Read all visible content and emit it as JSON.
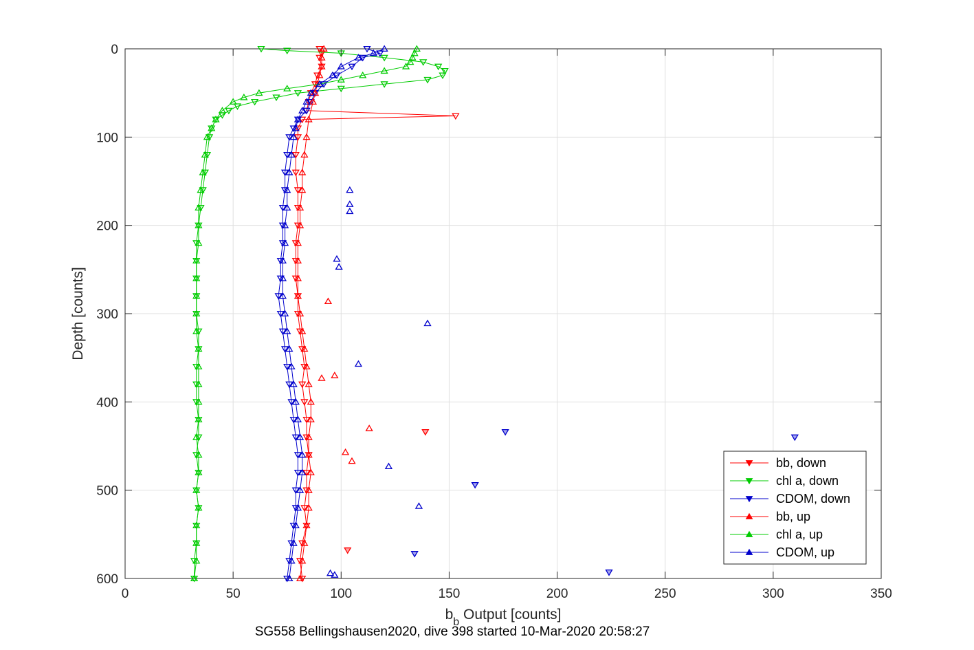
{
  "chart_data": {
    "type": "line",
    "xlabel_main": "b",
    "xlabel_sub": "b",
    "xlabel_rest": " Output [counts]",
    "ylabel": "Depth [counts]",
    "subtitle": "SG558 Bellingshausen2020, dive 398 started 10-Mar-2020 20:58:27",
    "xlim": [
      0,
      350
    ],
    "ylim": [
      0,
      600
    ],
    "y_reversed": true,
    "xticks": [
      0,
      50,
      100,
      150,
      200,
      250,
      300,
      350
    ],
    "yticks": [
      0,
      100,
      200,
      300,
      400,
      500,
      600
    ],
    "grid": true,
    "legend_position": "lower-right",
    "series": [
      {
        "name": "bb, down",
        "color": "#ff0000",
        "marker": "triangle-down",
        "depth": [
          0,
          5,
          10,
          20,
          30,
          40,
          50,
          60,
          70,
          76,
          80,
          90,
          100,
          120,
          140,
          160,
          180,
          200,
          220,
          240,
          260,
          280,
          300,
          320,
          340,
          360,
          380,
          400,
          420,
          440,
          460,
          480,
          500,
          520,
          540,
          560,
          580,
          600
        ],
        "value": [
          90,
          91,
          90,
          91,
          89,
          88,
          86,
          85,
          84,
          153,
          82,
          80,
          80,
          79,
          79,
          80,
          80,
          80,
          79,
          79,
          79,
          80,
          80,
          81,
          82,
          83,
          82,
          83,
          84,
          84,
          85,
          84,
          84,
          83,
          84,
          82,
          81,
          82
        ]
      },
      {
        "name": "chl a, down",
        "color": "#00cc00",
        "marker": "triangle-down",
        "depth": [
          0,
          2,
          5,
          10,
          15,
          20,
          25,
          30,
          35,
          40,
          45,
          50,
          55,
          60,
          65,
          70,
          75,
          80,
          90,
          100,
          120,
          140,
          160,
          180,
          200,
          220,
          240,
          260,
          280,
          300,
          320,
          340,
          360,
          380,
          400,
          420,
          440,
          460,
          480,
          500,
          520,
          540,
          560,
          580,
          600
        ],
        "value": [
          63,
          75,
          100,
          120,
          138,
          145,
          148,
          147,
          140,
          120,
          100,
          80,
          70,
          60,
          52,
          48,
          45,
          42,
          40,
          39,
          38,
          37,
          36,
          35,
          34,
          33,
          33,
          33,
          33,
          33,
          34,
          34,
          33,
          33,
          33,
          34,
          34,
          33,
          34,
          33,
          34,
          33,
          33,
          32,
          32
        ]
      },
      {
        "name": "CDOM, down",
        "color": "#0000cc",
        "marker": "triangle-down",
        "depth": [
          0,
          5,
          10,
          20,
          30,
          40,
          50,
          60,
          70,
          80,
          90,
          100,
          120,
          140,
          160,
          180,
          200,
          220,
          240,
          260,
          280,
          300,
          320,
          340,
          360,
          380,
          400,
          420,
          440,
          460,
          480,
          500,
          520,
          540,
          560,
          580,
          600
        ],
        "value": [
          112,
          118,
          110,
          105,
          98,
          92,
          88,
          86,
          84,
          80,
          78,
          76,
          75,
          74,
          74,
          73,
          73,
          73,
          72,
          72,
          71,
          72,
          73,
          74,
          75,
          76,
          77,
          78,
          79,
          80,
          80,
          79,
          79,
          78,
          77,
          76,
          75
        ]
      },
      {
        "name": "bb, up",
        "color": "#ff0000",
        "marker": "triangle-up",
        "depth": [
          0,
          10,
          20,
          30,
          40,
          50,
          60,
          80,
          100,
          120,
          140,
          160,
          180,
          200,
          220,
          240,
          260,
          280,
          300,
          320,
          340,
          360,
          380,
          400,
          420,
          440,
          460,
          480,
          500,
          520,
          540,
          560,
          580,
          600
        ],
        "value": [
          92,
          91,
          91,
          90,
          89,
          88,
          87,
          85,
          84,
          83,
          82,
          82,
          81,
          81,
          80,
          80,
          80,
          80,
          81,
          82,
          83,
          84,
          85,
          86,
          86,
          85,
          85,
          86,
          85,
          85,
          84,
          83,
          82,
          81
        ]
      },
      {
        "name": "chl a, up",
        "color": "#00cc00",
        "marker": "triangle-up",
        "depth": [
          0,
          5,
          10,
          15,
          20,
          25,
          30,
          35,
          40,
          45,
          50,
          55,
          60,
          70,
          80,
          90,
          100,
          120,
          140,
          160,
          180,
          200,
          220,
          240,
          260,
          280,
          300,
          320,
          340,
          360,
          380,
          400,
          420,
          440,
          460,
          480,
          500,
          520,
          540,
          560,
          580,
          600
        ],
        "value": [
          135,
          134,
          133,
          132,
          130,
          120,
          110,
          100,
          90,
          75,
          62,
          55,
          50,
          45,
          42,
          40,
          38,
          37,
          36,
          35,
          34,
          34,
          34,
          33,
          33,
          33,
          33,
          33,
          34,
          34,
          34,
          34,
          34,
          33,
          34,
          34,
          33,
          34,
          33,
          33,
          33,
          32
        ]
      },
      {
        "name": "CDOM, up",
        "color": "#0000cc",
        "marker": "triangle-up",
        "depth": [
          0,
          5,
          10,
          20,
          30,
          40,
          50,
          60,
          70,
          80,
          90,
          100,
          120,
          140,
          160,
          180,
          200,
          220,
          240,
          260,
          280,
          300,
          320,
          340,
          360,
          380,
          400,
          420,
          440,
          460,
          480,
          500,
          520,
          540,
          560,
          580,
          600
        ],
        "value": [
          120,
          115,
          108,
          100,
          96,
          90,
          86,
          84,
          82,
          80,
          79,
          78,
          77,
          76,
          75,
          75,
          74,
          74,
          73,
          73,
          73,
          74,
          75,
          76,
          77,
          78,
          79,
          80,
          81,
          82,
          82,
          81,
          80,
          79,
          78,
          77,
          76
        ]
      }
    ],
    "outliers": [
      {
        "series": "CDOM, down",
        "value": 310,
        "depth": 440
      },
      {
        "series": "CDOM, down",
        "value": 176,
        "depth": 434
      },
      {
        "series": "CDOM, down",
        "value": 162,
        "depth": 494
      },
      {
        "series": "CDOM, down",
        "value": 134,
        "depth": 572
      },
      {
        "series": "CDOM, down",
        "value": 224,
        "depth": 593
      },
      {
        "series": "CDOM, up",
        "value": 140,
        "depth": 311
      },
      {
        "series": "CDOM, up",
        "value": 98,
        "depth": 238
      },
      {
        "series": "CDOM, up",
        "value": 99,
        "depth": 247
      },
      {
        "series": "CDOM, up",
        "value": 108,
        "depth": 357
      },
      {
        "series": "CDOM, up",
        "value": 136,
        "depth": 518
      },
      {
        "series": "CDOM, up",
        "value": 122,
        "depth": 473
      },
      {
        "series": "CDOM, up",
        "value": 104,
        "depth": 160
      },
      {
        "series": "CDOM, up",
        "value": 104,
        "depth": 176
      },
      {
        "series": "CDOM, up",
        "value": 104,
        "depth": 184
      },
      {
        "series": "CDOM, up",
        "value": 95,
        "depth": 594
      },
      {
        "series": "CDOM, up",
        "value": 97,
        "depth": 596
      },
      {
        "series": "bb, down",
        "value": 139,
        "depth": 434
      },
      {
        "series": "bb, down",
        "value": 103,
        "depth": 568
      },
      {
        "series": "bb, up",
        "value": 113,
        "depth": 430
      },
      {
        "series": "bb, up",
        "value": 94,
        "depth": 286
      },
      {
        "series": "bb, up",
        "value": 102,
        "depth": 457
      },
      {
        "series": "bb, up",
        "value": 105,
        "depth": 467
      },
      {
        "series": "bb, up",
        "value": 91,
        "depth": 373
      },
      {
        "series": "bb, up",
        "value": 97,
        "depth": 370
      }
    ]
  }
}
